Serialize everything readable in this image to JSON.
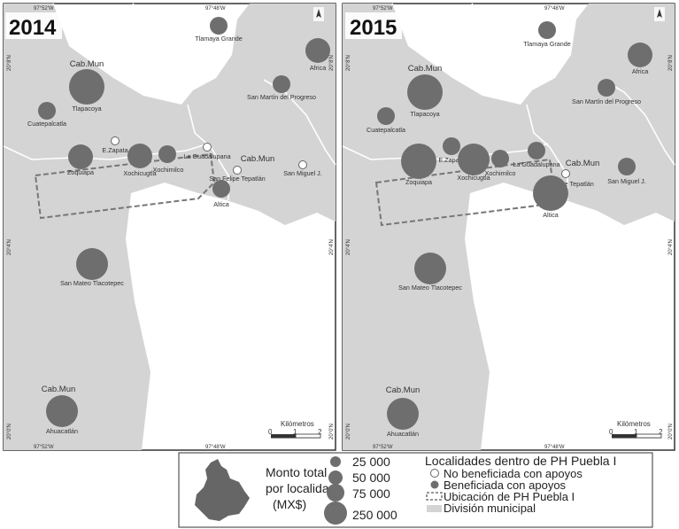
{
  "maps": [
    {
      "year": "2014",
      "coord_labels": {
        "top_left": "97°52'W",
        "top_right": "97°48'W",
        "bottom_left": "97°52'W",
        "bottom_right": "97°48'W",
        "left_top": "20°8'N",
        "left_mid": "20°4'N",
        "left_bottom": "20°0'N",
        "right_top": "20°8'N",
        "right_mid": "20°4'N",
        "right_bottom": "20°0'N"
      },
      "localities": [
        {
          "name": "Tlamaya Grande",
          "status": "beneficiada",
          "size": "25 000"
        },
        {
          "name": "Africa",
          "status": "beneficiada",
          "size": "50 000"
        },
        {
          "name": "San Martín del Progreso",
          "status": "beneficiada",
          "size": "25 000"
        },
        {
          "name": "Tlapacoya",
          "status": "beneficiada",
          "size": "250 000",
          "cab": "Cab.Mun"
        },
        {
          "name": "Cuatepalcatla",
          "status": "beneficiada",
          "size": "25 000"
        },
        {
          "name": "E.Zapata",
          "status": "no_beneficiada",
          "size": ""
        },
        {
          "name": "Zoquiapa",
          "status": "beneficiada",
          "size": "50 000"
        },
        {
          "name": "Xochicugtla",
          "status": "beneficiada",
          "size": "50 000"
        },
        {
          "name": "Xochimilco",
          "status": "beneficiada",
          "size": "25 000"
        },
        {
          "name": "La Guadalupana",
          "status": "no_beneficiada",
          "size": ""
        },
        {
          "name": "San Felipe Tepatlán",
          "status": "no_beneficiada",
          "size": "",
          "cab": "Cab.Mun"
        },
        {
          "name": "San Miguel J.",
          "status": "no_beneficiada",
          "size": ""
        },
        {
          "name": "Altica",
          "status": "beneficiada",
          "size": "25 000"
        },
        {
          "name": "San Mateo Tlacotepec",
          "status": "beneficiada",
          "size": "75 000"
        },
        {
          "name": "Ahuacatlán",
          "status": "beneficiada",
          "size": "75 000",
          "cab": "Cab.Mun"
        }
      ]
    },
    {
      "year": "2015",
      "coord_labels": {
        "top_left": "97°52'W",
        "top_right": "97°48'W",
        "bottom_left": "97°52'W",
        "bottom_right": "97°48'W",
        "left_top": "20°8'N",
        "left_mid": "20°4'N",
        "left_bottom": "20°0'N",
        "right_top": "20°8'N",
        "right_mid": "20°4'N",
        "right_bottom": "20°0'N"
      },
      "localities": [
        {
          "name": "Tlamaya Grande",
          "status": "beneficiada",
          "size": "25 000"
        },
        {
          "name": "Africa",
          "status": "beneficiada",
          "size": "50 000"
        },
        {
          "name": "San Martín del Progreso",
          "status": "beneficiada",
          "size": "25 000"
        },
        {
          "name": "Tlapacoya",
          "status": "beneficiada",
          "size": "250 000",
          "cab": "Cab.Mun"
        },
        {
          "name": "Cuatepalcatla",
          "status": "beneficiada",
          "size": "25 000"
        },
        {
          "name": "E.Zapata",
          "status": "beneficiada",
          "size": "25 000"
        },
        {
          "name": "Zoquiapa",
          "status": "beneficiada",
          "size": "250 000"
        },
        {
          "name": "Xochicugtla",
          "status": "beneficiada",
          "size": "75 000"
        },
        {
          "name": "Xochimilco",
          "status": "beneficiada",
          "size": "25 000"
        },
        {
          "name": "La Guadalupana",
          "status": "beneficiada",
          "size": "25 000"
        },
        {
          "name": "San Felipe Tepatlán",
          "status": "no_beneficiada",
          "size": "",
          "cab": "Cab.Mun"
        },
        {
          "name": "San Miguel J.",
          "status": "beneficiada",
          "size": "25 000"
        },
        {
          "name": "Altica",
          "status": "beneficiada",
          "size": "250 000"
        },
        {
          "name": "San Mateo Tlacotepec",
          "status": "beneficiada",
          "size": "75 000"
        },
        {
          "name": "Ahuacatlán",
          "status": "beneficiada",
          "size": "75 000",
          "cab": "Cab.Mun"
        }
      ]
    }
  ],
  "scalebar": {
    "title": "Kilómetros",
    "ticks": [
      "0",
      "1",
      "2"
    ]
  },
  "north_icon": "north-arrow-icon",
  "legend": {
    "size_title": [
      "Monto total",
      "por localidad",
      "(MX$)"
    ],
    "sizes": [
      "25 000",
      "50 000",
      "75 000",
      "250 000"
    ],
    "categories_title": "Localidades dentro de PH Puebla I",
    "items": {
      "no_beneficiada": "No beneficiada con apoyos",
      "beneficiada": "Beneficiada con apoyos",
      "ubicacion": "Ubicación de PH Puebla I",
      "division": "División municipal"
    }
  },
  "colors": {
    "region": "#d4d4d4",
    "border": "#ffffff",
    "beneficiada": "#6e6e6e",
    "no_beneficiada": "#ffffff",
    "frame": "#333333"
  }
}
